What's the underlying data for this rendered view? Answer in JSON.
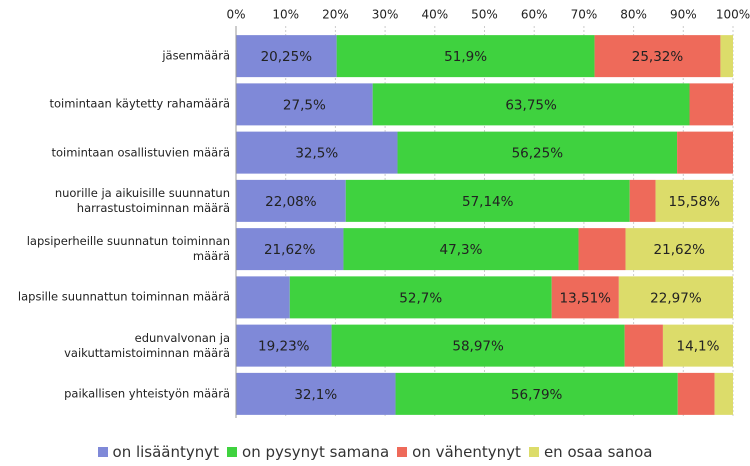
{
  "chart_data": {
    "type": "stacked-bar-horizontal",
    "categories": [
      "jäsenmäärä",
      "toimintaan käytetty rahamäärä",
      "toimintaan osallistuvien määrä",
      "nuorille ja aikuisille suunnatun\nharrastustoiminnan määrä",
      "lapsiperheille suunnatun toiminnan\nmäärä",
      "lapsille suunnattun toiminnan määrä",
      "edunvalvonan ja\nvaikuttamistoiminnan määrä",
      "paikallisen yhteistyön määrä"
    ],
    "series": [
      {
        "name": "on lisääntynyt",
        "color": "#7f89d8",
        "values": [
          20.25,
          27.5,
          32.5,
          22.08,
          21.62,
          10.82,
          19.23,
          32.1
        ],
        "value_labels": [
          "20,25%",
          "27,5%",
          "32,5%",
          "22,08%",
          "21,62%",
          null,
          "19,23%",
          "32,1%"
        ]
      },
      {
        "name": "on pysynyt samana",
        "color": "#3fd23f",
        "values": [
          51.9,
          63.75,
          56.25,
          57.14,
          47.3,
          52.7,
          58.97,
          56.79
        ],
        "value_labels": [
          "51,9%",
          "63,75%",
          "56,25%",
          "57,14%",
          "47,3%",
          "52,7%",
          "58,97%",
          "56,79%"
        ]
      },
      {
        "name": "on vähentynyt",
        "color": "#ee6a5a",
        "values": [
          25.32,
          8.75,
          11.25,
          5.2,
          9.46,
          13.51,
          7.7,
          7.41
        ],
        "value_labels": [
          "25,32%",
          null,
          null,
          null,
          null,
          "13,51%",
          null,
          null
        ]
      },
      {
        "name": "en osaa sanoa",
        "color": "#dcdc6a",
        "values": [
          2.53,
          0,
          0,
          15.58,
          21.62,
          22.97,
          14.1,
          3.7
        ],
        "value_labels": [
          null,
          null,
          null,
          "15,58%",
          "21,62%",
          "22,97%",
          "14,1%",
          null
        ]
      }
    ],
    "xlim": [
      0,
      100
    ],
    "xticks": [
      {
        "value": 0,
        "label": "0%"
      },
      {
        "value": 10,
        "label": "10%"
      },
      {
        "value": 20,
        "label": "20%"
      },
      {
        "value": 30,
        "label": "30%"
      },
      {
        "value": 40,
        "label": "40%"
      },
      {
        "value": 50,
        "label": "50%"
      },
      {
        "value": 60,
        "label": "60%"
      },
      {
        "value": 70,
        "label": "70%"
      },
      {
        "value": 80,
        "label": "80%"
      },
      {
        "value": 90,
        "label": "90%"
      },
      {
        "value": 100,
        "label": "100%"
      }
    ],
    "grid": true,
    "legend": "bottom"
  }
}
